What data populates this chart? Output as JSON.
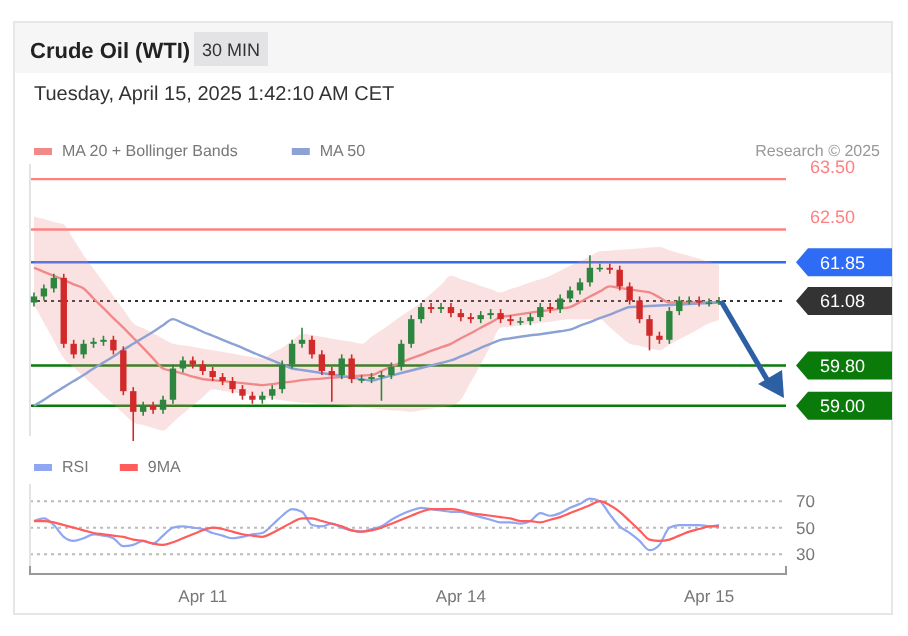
{
  "chart_data": [
    {
      "type": "candlestick",
      "title": "Crude Oil (WTI)",
      "subtitle": "Tuesday, April 15, 2025 1:42:10 AM CET",
      "annotations": [
        "30 MIN",
        "Research © 2025"
      ],
      "categories": [
        null,
        null,
        null,
        null,
        null,
        null,
        null,
        null,
        null,
        null,
        null,
        null,
        null,
        null,
        null,
        null,
        null,
        null,
        null,
        null,
        null,
        null,
        null,
        null,
        null,
        null,
        null,
        null,
        null,
        null,
        null,
        null,
        null,
        null,
        null,
        null,
        null,
        null,
        null,
        null,
        null,
        null,
        null,
        null,
        null,
        null,
        null,
        null,
        null,
        null,
        null,
        null,
        null,
        null,
        null,
        null,
        null,
        null,
        null,
        null,
        null,
        null,
        null,
        null,
        null,
        null,
        null,
        null,
        null,
        null
      ],
      "ohlc": [
        [
          61.05,
          61.25,
          60.97,
          61.17
        ],
        [
          61.17,
          61.41,
          61.09,
          61.33
        ],
        [
          61.33,
          61.62,
          61.25,
          61.54
        ],
        [
          61.54,
          61.62,
          60.15,
          60.23
        ],
        [
          60.23,
          60.31,
          59.94,
          60.02
        ],
        [
          60.02,
          60.31,
          59.94,
          60.23
        ],
        [
          60.23,
          60.35,
          60.15,
          60.27
        ],
        [
          60.27,
          60.39,
          60.19,
          60.31
        ],
        [
          60.31,
          60.39,
          60.02,
          60.1
        ],
        [
          60.1,
          60.18,
          59.21,
          59.29
        ],
        [
          59.29,
          59.37,
          58.3,
          58.88
        ],
        [
          58.88,
          59.08,
          58.8,
          59.0
        ],
        [
          59.0,
          59.08,
          58.84,
          58.92
        ],
        [
          58.92,
          59.2,
          58.84,
          59.12
        ],
        [
          59.12,
          59.82,
          59.04,
          59.74
        ],
        [
          59.74,
          59.98,
          59.66,
          59.9
        ],
        [
          59.9,
          59.98,
          59.74,
          59.82
        ],
        [
          59.82,
          59.9,
          59.61,
          59.69
        ],
        [
          59.69,
          59.77,
          59.49,
          59.57
        ],
        [
          59.57,
          59.65,
          59.41,
          59.49
        ],
        [
          59.49,
          59.57,
          59.25,
          59.33
        ],
        [
          59.33,
          59.41,
          59.12,
          59.2
        ],
        [
          59.2,
          59.28,
          59.04,
          59.12
        ],
        [
          59.12,
          59.28,
          59.04,
          59.2
        ],
        [
          59.2,
          59.41,
          59.12,
          59.33
        ],
        [
          59.33,
          59.9,
          59.25,
          59.82
        ],
        [
          59.82,
          60.31,
          59.74,
          60.23
        ],
        [
          60.23,
          60.55,
          60.15,
          60.31
        ],
        [
          60.31,
          60.39,
          59.94,
          60.02
        ],
        [
          60.02,
          60.1,
          59.61,
          59.69
        ],
        [
          59.69,
          59.77,
          59.08,
          59.61
        ],
        [
          59.61,
          60.02,
          59.53,
          59.94
        ],
        [
          59.94,
          60.02,
          59.45,
          59.53
        ],
        [
          59.53,
          59.61,
          59.45,
          59.53
        ],
        [
          59.53,
          59.65,
          59.45,
          59.57
        ],
        [
          59.57,
          59.69,
          59.1,
          59.61
        ],
        [
          59.61,
          59.86,
          59.53,
          59.78
        ],
        [
          59.78,
          60.31,
          59.7,
          60.23
        ],
        [
          60.23,
          60.8,
          60.15,
          60.72
        ],
        [
          60.72,
          61.04,
          60.64,
          60.96
        ],
        [
          60.96,
          61.04,
          60.84,
          60.92
        ],
        [
          60.92,
          61.04,
          60.84,
          60.96
        ],
        [
          60.96,
          61.04,
          60.76,
          60.84
        ],
        [
          60.84,
          60.92,
          60.68,
          60.76
        ],
        [
          60.76,
          60.84,
          60.64,
          60.72
        ],
        [
          60.72,
          60.88,
          60.64,
          60.8
        ],
        [
          60.8,
          60.92,
          60.72,
          60.84
        ],
        [
          60.84,
          60.92,
          60.64,
          60.72
        ],
        [
          60.72,
          60.8,
          60.6,
          60.68
        ],
        [
          60.68,
          60.76,
          60.6,
          60.68
        ],
        [
          60.68,
          60.84,
          60.6,
          60.76
        ],
        [
          60.76,
          61.04,
          60.68,
          60.96
        ],
        [
          60.96,
          61.04,
          60.84,
          60.92
        ],
        [
          60.92,
          61.21,
          60.84,
          61.13
        ],
        [
          61.13,
          61.37,
          61.05,
          61.29
        ],
        [
          61.29,
          61.53,
          61.21,
          61.45
        ],
        [
          61.45,
          61.99,
          61.37,
          61.74
        ],
        [
          61.74,
          61.82,
          61.66,
          61.74
        ],
        [
          61.74,
          61.82,
          61.62,
          61.7
        ],
        [
          61.7,
          61.78,
          61.29,
          61.37
        ],
        [
          61.37,
          61.45,
          61.01,
          61.09
        ],
        [
          61.09,
          61.17,
          60.64,
          60.72
        ],
        [
          60.72,
          60.8,
          60.1,
          60.39
        ],
        [
          60.39,
          60.47,
          60.23,
          60.31
        ],
        [
          60.31,
          60.96,
          60.23,
          60.88
        ],
        [
          60.88,
          61.17,
          60.8,
          61.09
        ],
        [
          61.09,
          61.17,
          61.01,
          61.09
        ],
        [
          61.09,
          61.17,
          60.97,
          61.05
        ],
        [
          61.05,
          61.13,
          60.97,
          61.05
        ],
        [
          61.05,
          61.16,
          61.0,
          61.08
        ]
      ],
      "series": [
        {
          "type": "line",
          "name": "MA 20 + Bollinger Bands",
          "color": "#f08a8a",
          "values": [
            61.74,
            61.66,
            61.58,
            61.5,
            61.41,
            61.33,
            61.13,
            60.94,
            60.74,
            60.55,
            60.35,
            60.15,
            59.94,
            59.74,
            59.69,
            59.64,
            59.58,
            59.53,
            59.51,
            59.49,
            59.47,
            59.45,
            59.43,
            59.41,
            59.43,
            59.46,
            59.48,
            59.51,
            59.53,
            59.54,
            59.56,
            59.57,
            59.58,
            59.6,
            59.61,
            59.69,
            59.78,
            59.86,
            59.94,
            60.01,
            60.09,
            60.16,
            60.23,
            60.34,
            60.44,
            60.55,
            60.65,
            60.76,
            60.79,
            60.82,
            60.85,
            60.88,
            60.9,
            60.93,
            60.96,
            61.06,
            61.17,
            61.27,
            61.37,
            61.34,
            61.31,
            61.28,
            61.25,
            61.15,
            61.05,
            61.05,
            61.05,
            61.05,
            61.05,
            61.05
          ],
          "upper": [
            62.76,
            62.71,
            62.65,
            62.6,
            62.3,
            61.99,
            61.72,
            61.45,
            61.18,
            60.91,
            60.64,
            60.54,
            60.44,
            60.33,
            60.23,
            60.2,
            60.17,
            60.13,
            60.1,
            60.07,
            60.04,
            60.0,
            59.97,
            59.94,
            60.05,
            60.15,
            60.29,
            60.43,
            60.4,
            60.37,
            60.33,
            60.3,
            60.27,
            60.23,
            60.37,
            60.5,
            60.64,
            60.78,
            60.91,
            61.05,
            61.23,
            61.4,
            61.58,
            61.51,
            61.45,
            61.38,
            61.32,
            61.25,
            61.32,
            61.38,
            61.45,
            61.51,
            61.58,
            61.68,
            61.78,
            61.87,
            61.97,
            62.07,
            62.08,
            62.1,
            62.11,
            62.12,
            62.14,
            62.15,
            62.09,
            62.03,
            61.98,
            61.92,
            61.86,
            61.8
          ],
          "lower": [
            61.0,
            60.65,
            60.29,
            59.94,
            59.76,
            59.58,
            59.4,
            59.21,
            59.03,
            58.85,
            58.67,
            58.62,
            58.56,
            58.51,
            58.67,
            58.84,
            59.0,
            59.17,
            59.33,
            59.3,
            59.27,
            59.24,
            59.21,
            59.17,
            59.14,
            59.11,
            59.08,
            59.06,
            59.05,
            59.03,
            59.02,
            59.0,
            58.98,
            58.96,
            58.95,
            58.93,
            58.91,
            58.9,
            58.88,
            58.91,
            58.94,
            58.97,
            59.0,
            59.12,
            59.47,
            59.82,
            60.19,
            60.55,
            60.57,
            60.6,
            60.62,
            60.65,
            60.67,
            60.7,
            60.72,
            60.72,
            60.72,
            60.72,
            60.56,
            60.39,
            60.23,
            60.19,
            60.14,
            60.1,
            60.21,
            60.32,
            60.42,
            60.53,
            60.64,
            60.7
          ]
        },
        {
          "type": "line",
          "name": "MA 50",
          "color": "#8da2d4",
          "values": [
            59.0,
            59.12,
            59.25,
            59.37,
            59.49,
            59.61,
            59.74,
            59.86,
            59.98,
            60.11,
            60.23,
            60.35,
            60.47,
            60.6,
            60.72,
            60.64,
            60.56,
            60.47,
            60.39,
            60.31,
            60.23,
            60.15,
            60.06,
            59.98,
            59.9,
            59.82,
            59.74,
            59.71,
            59.68,
            59.65,
            59.62,
            59.59,
            59.56,
            59.53,
            59.5,
            59.55,
            59.6,
            59.65,
            59.7,
            59.75,
            59.8,
            59.85,
            59.9,
            59.98,
            60.06,
            60.15,
            60.23,
            60.31,
            60.34,
            60.37,
            60.4,
            60.42,
            60.45,
            60.48,
            60.51,
            60.59,
            60.66,
            60.74,
            60.81,
            60.89,
            60.96,
            60.97,
            60.98,
            60.99,
            61.0,
            61.01,
            61.02,
            61.03,
            61.04,
            61.05
          ]
        }
      ],
      "ref_lines": [
        {
          "axis": "y",
          "value": 63.5,
          "label": "63.50",
          "color": "#ff8080"
        },
        {
          "axis": "y",
          "value": 62.5,
          "label": "62.50",
          "color": "#ff8080"
        },
        {
          "axis": "y",
          "value": 61.85,
          "label": "61.85",
          "color": "#2e6cf6"
        },
        {
          "axis": "y",
          "value": 61.08,
          "label": "61.08",
          "color": "#333333",
          "line_style": "dotted"
        },
        {
          "axis": "y",
          "value": 59.8,
          "label": "59.80",
          "color": "#0a7a0a"
        },
        {
          "axis": "y",
          "value": 59.0,
          "label": "59.00",
          "color": "#0a7a0a"
        }
      ],
      "ylim": [
        58.4,
        63.8
      ],
      "legend": "top left"
    },
    {
      "type": "line",
      "categories": [
        null,
        null,
        null,
        null,
        null,
        null,
        null,
        null,
        null,
        null,
        null,
        null,
        null,
        null,
        null,
        null,
        null,
        "Apr 11",
        null,
        null,
        null,
        null,
        null,
        null,
        null,
        null,
        null,
        null,
        null,
        null,
        null,
        null,
        null,
        null,
        null,
        null,
        null,
        null,
        null,
        null,
        null,
        null,
        null,
        "Apr 14",
        null,
        null,
        null,
        null,
        null,
        null,
        null,
        null,
        null,
        null,
        null,
        null,
        null,
        null,
        null,
        null,
        null,
        null,
        null,
        null,
        null,
        null,
        null,
        null,
        "Apr 15",
        null
      ],
      "series": [
        {
          "name": "RSI",
          "color": "#8fa6f2",
          "values": [
            55,
            57,
            52,
            43,
            40,
            42,
            45,
            44,
            42,
            36,
            37,
            40,
            38,
            44,
            50,
            51,
            50,
            49,
            46,
            44,
            42,
            43,
            45,
            46,
            52,
            59,
            64,
            62,
            52,
            51,
            53,
            50,
            48,
            47,
            49,
            51,
            56,
            60,
            63,
            65,
            64,
            63,
            62,
            62,
            60,
            58,
            56,
            54,
            54,
            53,
            55,
            61,
            59,
            61,
            65,
            68,
            72,
            70,
            60,
            51,
            46,
            40,
            33,
            37,
            50,
            52,
            52,
            52,
            51,
            52
          ]
        },
        {
          "name": "9MA",
          "color": "#ff5c5c",
          "values": [
            55,
            55,
            54,
            52,
            50,
            48,
            46,
            45,
            44,
            43,
            41,
            40,
            38,
            37,
            39,
            42,
            45,
            48,
            50,
            49,
            47,
            45,
            44,
            43,
            46,
            50,
            54,
            57,
            57,
            55,
            53,
            51,
            48,
            47,
            48,
            50,
            53,
            56,
            59,
            62,
            64,
            64,
            64,
            63,
            61,
            60,
            59,
            58,
            57,
            55,
            55,
            54,
            56,
            58,
            61,
            64,
            67,
            70,
            67,
            62,
            55,
            48,
            41,
            40,
            41,
            44,
            47,
            49,
            51,
            51
          ]
        }
      ],
      "ylim": [
        15,
        83
      ],
      "yticks": [
        30,
        50,
        70
      ],
      "grid": "y",
      "legend": "top left"
    }
  ]
}
